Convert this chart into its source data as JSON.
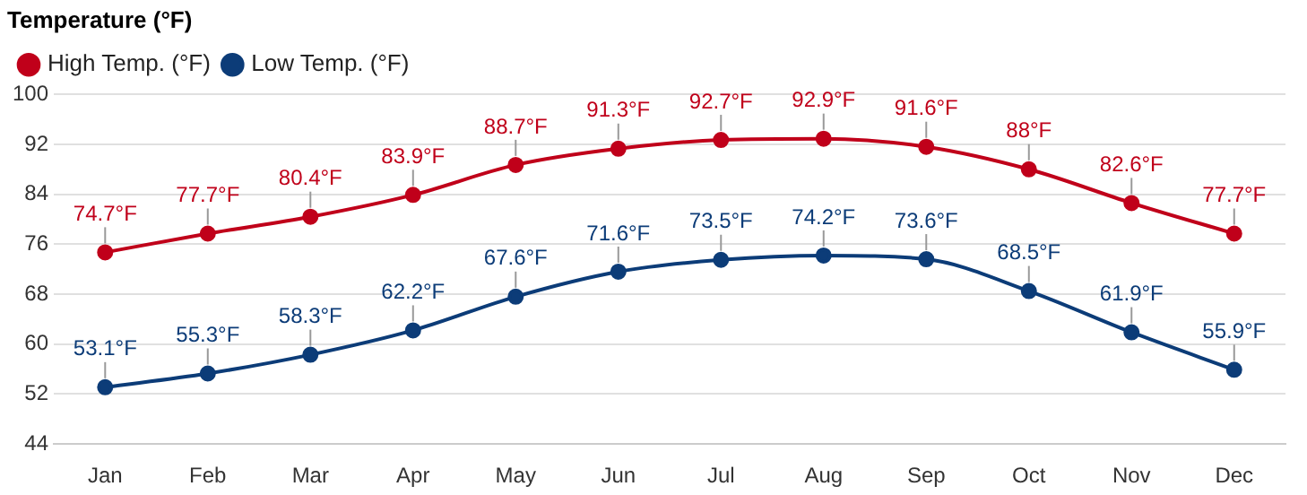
{
  "chart_data": {
    "type": "line",
    "title": "Temperature (°F)",
    "categories": [
      "Jan",
      "Feb",
      "Mar",
      "Apr",
      "May",
      "Jun",
      "Jul",
      "Aug",
      "Sep",
      "Oct",
      "Nov",
      "Dec"
    ],
    "series": [
      {
        "name": "High Temp. (°F)",
        "color": "#c0001a",
        "values": [
          74.7,
          77.7,
          80.4,
          83.9,
          88.7,
          91.3,
          92.7,
          92.9,
          91.6,
          88,
          82.6,
          77.7
        ],
        "value_labels": [
          "74.7°F",
          "77.7°F",
          "80.4°F",
          "83.9°F",
          "88.7°F",
          "91.3°F",
          "92.7°F",
          "92.9°F",
          "91.6°F",
          "88°F",
          "82.6°F",
          "77.7°F"
        ]
      },
      {
        "name": "Low Temp. (°F)",
        "color": "#0c3c78",
        "values": [
          53.1,
          55.3,
          58.3,
          62.2,
          67.6,
          71.6,
          73.5,
          74.2,
          73.6,
          68.5,
          61.9,
          55.9
        ],
        "value_labels": [
          "53.1°F",
          "55.3°F",
          "58.3°F",
          "62.2°F",
          "67.6°F",
          "71.6°F",
          "73.5°F",
          "74.2°F",
          "73.6°F",
          "68.5°F",
          "61.9°F",
          "55.9°F"
        ]
      }
    ],
    "ylim": [
      44,
      100
    ],
    "yticks": [
      44,
      52,
      60,
      68,
      76,
      84,
      92,
      100
    ],
    "grid": "y",
    "legend": "top left",
    "marker": "circle",
    "line_style": "solid"
  }
}
